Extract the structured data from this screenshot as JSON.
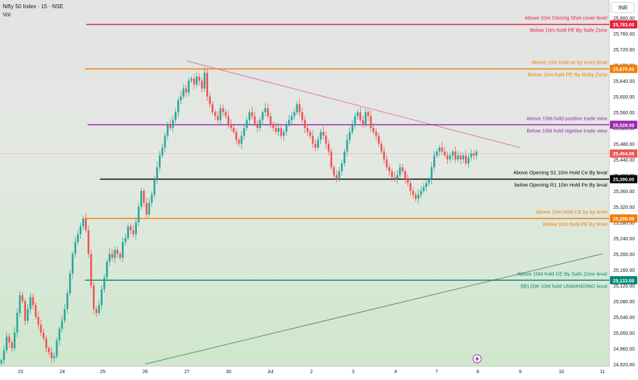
{
  "header": {
    "title": "Nifty 50 Index · 15 · NSE",
    "volume_label": "Vol",
    "currency": "INR"
  },
  "chart_data": {
    "type": "candlestick",
    "x_tick_labels": [
      "23",
      "24",
      "25",
      "26",
      "27",
      "30",
      "Jul",
      "2",
      "3",
      "4",
      "7",
      "8",
      "9",
      "10",
      "11"
    ],
    "y_tick_values": [
      25800,
      25760,
      25720,
      25680,
      25640,
      25600,
      25560,
      25520,
      25480,
      25440,
      25400,
      25360,
      25320,
      25280,
      25240,
      25200,
      25160,
      25120,
      25080,
      25040,
      25000,
      24960,
      24920
    ],
    "y_range": [
      24910,
      25830
    ],
    "last_price": 25454.95,
    "levels": [
      {
        "price": 25783.0,
        "price_label": "25,783.00",
        "color": "#e91e3c",
        "label_above": "Above 10m Closing Shot cover level",
        "label_below": "Below 10m hold PE By Safe Zone"
      },
      {
        "price": 25670.0,
        "price_label": "25,670.00",
        "color": "#f57c00",
        "label_above": "Above 10m hold ce by entry leval",
        "label_below": "Below 10m hold PE By Risky Zone"
      },
      {
        "price": 25528.0,
        "price_label": "25,528.00",
        "color": "#9c27b0",
        "label_above": "Above 10M hold positive trade view",
        "label_below": "Below 10M hold nigetive trade view"
      },
      {
        "price": 25390.0,
        "price_label": "25,390.00",
        "color": "#000000",
        "label_above": "Above Opening S1 10m Hold Ce By leval",
        "label_below": "below Opening R1 10m Hold Pe By leval"
      },
      {
        "price": 25290.0,
        "price_label": "25,290.00",
        "color": "#f57c00",
        "label_above": "Above 10m hold CE by by level",
        "label_below": "Below 10m hold PE By level"
      },
      {
        "price": 25133.0,
        "price_label": "25,133.00",
        "color": "#00897b",
        "label_above": "Above 10M hold CE By Safe Zone leval",
        "label_below": "BELOW 10M hold UNWANDING leval"
      }
    ],
    "last_price_label": "25,454.95",
    "trendlines": [
      {
        "name": "descending resistance",
        "color": "#e57399",
        "from": [
          "27",
          25690
        ],
        "to": [
          "9",
          25470
        ]
      },
      {
        "name": "ascending support",
        "color": "#5d8a5d",
        "from": [
          "26",
          24920
        ],
        "to": [
          "11",
          25200
        ]
      }
    ],
    "series": [
      {
        "name": "",
        "type": "candles",
        "closes": [
          24930,
          24955,
          24990,
          24975,
          24960,
          25000,
          25050,
          25095,
          25080,
          25030,
          25060,
          25090,
          25070,
          25040,
          25020,
          25000,
          24985,
          24960,
          24950,
          24935,
          24940,
          24980,
          25010,
          25030,
          25060,
          25100,
          25150,
          25200,
          25230,
          25250,
          25270,
          25290,
          25260,
          25200,
          25120,
          25060,
          25050,
          25070,
          25110,
          25140,
          25180,
          25200,
          25190,
          25210,
          25200,
          25190,
          25230,
          25240,
          25270,
          25260,
          25250,
          25280,
          25320,
          25360,
          25330,
          25300,
          25330,
          25350,
          25390,
          25420,
          25450,
          25470,
          25500,
          25530,
          25520,
          25540,
          25560,
          25590,
          25600,
          25620,
          25610,
          25640,
          25645,
          25630,
          25650,
          25640,
          25620,
          25660,
          25600,
          25580,
          25560,
          25550,
          25540,
          25570,
          25560,
          25550,
          25530,
          25520,
          25510,
          25490,
          25480,
          25500,
          25520,
          25540,
          25560,
          25550,
          25530,
          25520,
          25540,
          25560,
          25570,
          25550,
          25530,
          25520,
          25510,
          25520,
          25500,
          25510,
          25530,
          25540,
          25550,
          25560,
          25580,
          25560,
          25540,
          25520,
          25510,
          25500,
          25480,
          25470,
          25490,
          25510,
          25500,
          25480,
          25460,
          25420,
          25400,
          25390,
          25410,
          25430,
          25460,
          25490,
          25510,
          25530,
          25550,
          25560,
          25540,
          25530,
          25560,
          25550,
          25520,
          25510,
          25500,
          25480,
          25460,
          25440,
          25420,
          25410,
          25395,
          25390,
          25400,
          25420,
          25410,
          25390,
          25380,
          25360,
          25350,
          25340,
          25350,
          25360,
          25370,
          25380,
          25390,
          25420,
          25450,
          25460,
          25470,
          25460,
          25450,
          25440,
          25450,
          25460,
          25440,
          25450,
          25440,
          25450,
          25430,
          25445,
          25455,
          25450,
          25460
        ]
      }
    ]
  }
}
